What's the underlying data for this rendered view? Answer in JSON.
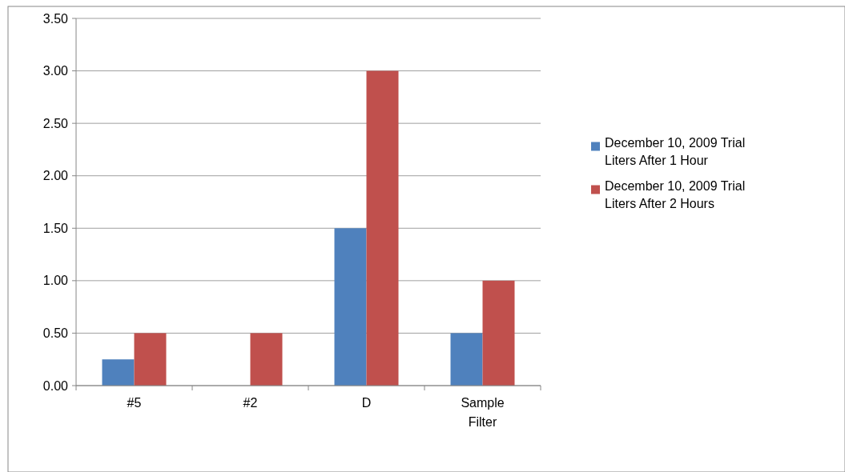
{
  "chart_data": {
    "type": "bar",
    "categories": [
      "#5",
      "#2",
      "D",
      "Sample Filter"
    ],
    "series": [
      {
        "name": "December 10, 2009 Trial Liters After 1 Hour",
        "color": "#4f81bd",
        "values": [
          0.25,
          0,
          1.5,
          0.5
        ]
      },
      {
        "name": "December 10, 2009 Trial Liters After 2 Hours",
        "color": "#c0504d",
        "values": [
          0.5,
          0.5,
          3.0,
          1.0
        ]
      }
    ],
    "ylim": [
      0,
      3.5
    ],
    "yticks": [
      {
        "value": 0,
        "label": "0.00"
      },
      {
        "value": 0.5,
        "label": "0.50"
      },
      {
        "value": 1,
        "label": "1.00"
      },
      {
        "value": 1.5,
        "label": "1.50"
      },
      {
        "value": 2,
        "label": "2.00"
      },
      {
        "value": 2.5,
        "label": "2.50"
      },
      {
        "value": 3,
        "label": "3.00"
      },
      {
        "value": 3.5,
        "label": "3.50"
      }
    ],
    "grid": "y",
    "legend": "right"
  }
}
